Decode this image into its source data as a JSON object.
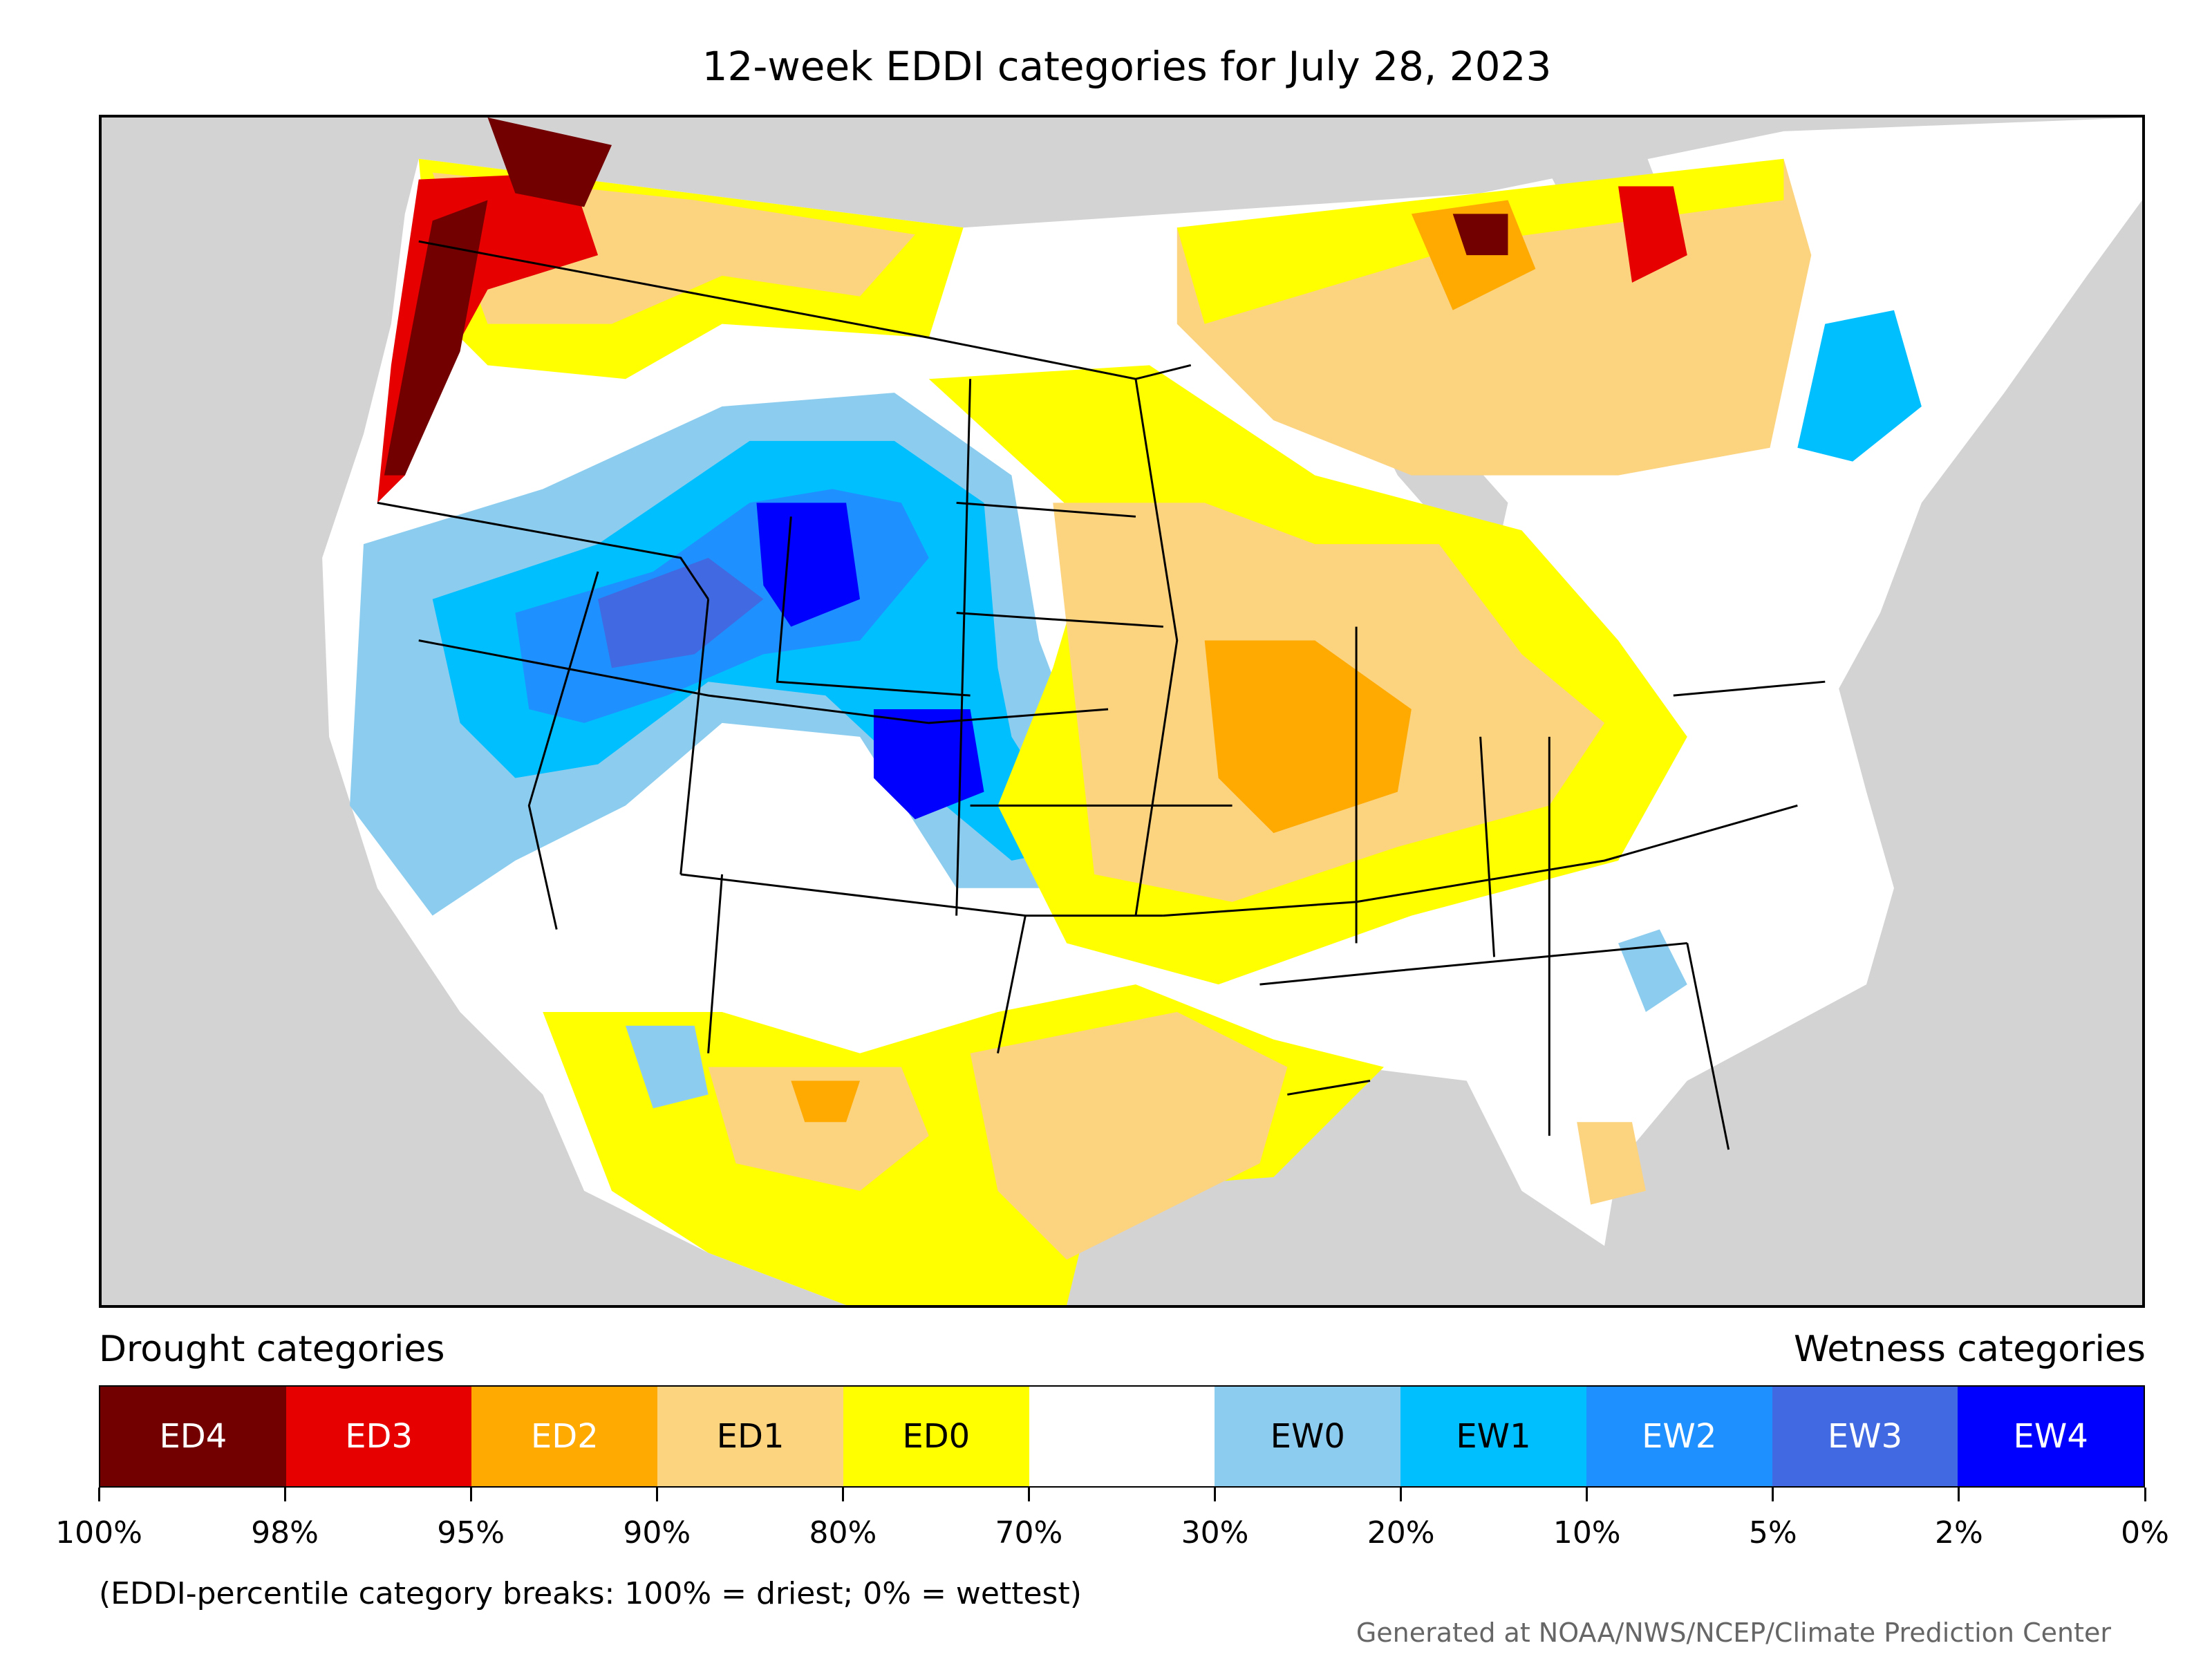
{
  "title": "12-week EDDI categories for July 28, 2023",
  "legend": {
    "drought_label": "Drought categories",
    "wetness_label": "Wetness categories",
    "categories": [
      {
        "label": "ED4",
        "color": "#730000",
        "text_color": "#ffffff"
      },
      {
        "label": "ED3",
        "color": "#e60000",
        "text_color": "#ffffff"
      },
      {
        "label": "ED2",
        "color": "#ffaa00",
        "text_color": "#ffffff"
      },
      {
        "label": "ED1",
        "color": "#fcd37f",
        "text_color": "#000000"
      },
      {
        "label": "ED0",
        "color": "#ffff00",
        "text_color": "#000000"
      },
      {
        "label": "",
        "color": "#ffffff",
        "text_color": "#000000"
      },
      {
        "label": "EW0",
        "color": "#8ccdef",
        "text_color": "#000000"
      },
      {
        "label": "EW1",
        "color": "#00bfff",
        "text_color": "#000000"
      },
      {
        "label": "EW2",
        "color": "#1e90ff",
        "text_color": "#ffffff"
      },
      {
        "label": "EW3",
        "color": "#4169e1",
        "text_color": "#ffffff"
      },
      {
        "label": "EW4",
        "color": "#0000ff",
        "text_color": "#ffffff"
      }
    ],
    "ticks": [
      "100%",
      "98%",
      "95%",
      "90%",
      "80%",
      "70%",
      "30%",
      "20%",
      "10%",
      "5%",
      "2%",
      "0%"
    ]
  },
  "footnote": "(EDDI-percentile category breaks: 100% = driest; 0% = wettest)",
  "credit": "Generated at NOAA/NWS/NCEP/Climate Prediction Center",
  "map": {
    "background_color": "#d3d3d3",
    "land_color": "#ffffff",
    "region": "Contiguous United States and southern Canada"
  }
}
